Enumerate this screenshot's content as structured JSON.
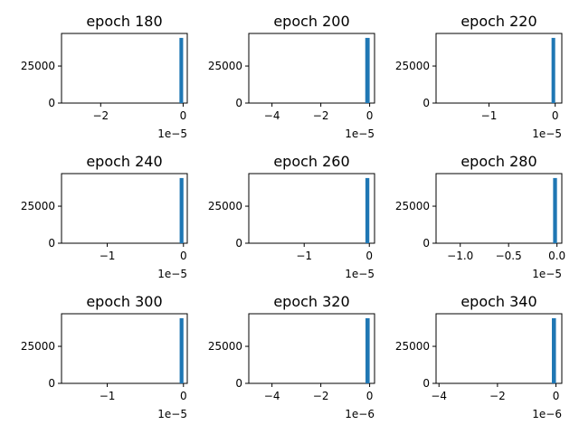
{
  "figure": {
    "bar_color": "#1f77b4",
    "background": "#ffffff"
  },
  "chart_data": [
    {
      "type": "bar",
      "title": "epoch 180",
      "x_ticks": [
        {
          "value": -2,
          "label": "−2"
        },
        {
          "value": 0,
          "label": "0"
        }
      ],
      "x_offset_label": "1e−5",
      "y_ticks": [
        {
          "value": 0,
          "label": "0"
        },
        {
          "value": 25000,
          "label": "25000"
        }
      ],
      "xlim": [
        -2.95,
        0.1
      ],
      "ylim": [
        0,
        47000
      ],
      "bars": [
        {
          "x0": -0.09,
          "x1": 0.0,
          "count": 44000
        }
      ]
    },
    {
      "type": "bar",
      "title": "epoch 200",
      "x_ticks": [
        {
          "value": -4,
          "label": "−4"
        },
        {
          "value": -2,
          "label": "−2"
        },
        {
          "value": 0,
          "label": "0"
        }
      ],
      "x_offset_label": "1e−5",
      "y_ticks": [
        {
          "value": 0,
          "label": "0"
        },
        {
          "value": 25000,
          "label": "25000"
        }
      ],
      "xlim": [
        -4.95,
        0.2
      ],
      "ylim": [
        0,
        47000
      ],
      "bars": [
        {
          "x0": -0.18,
          "x1": 0.0,
          "count": 44000
        }
      ]
    },
    {
      "type": "bar",
      "title": "epoch 220",
      "x_ticks": [
        {
          "value": -1,
          "label": "−1"
        },
        {
          "value": 0,
          "label": "0"
        }
      ],
      "x_offset_label": "1e−5",
      "y_ticks": [
        {
          "value": 0,
          "label": "0"
        },
        {
          "value": 25000,
          "label": "25000"
        }
      ],
      "xlim": [
        -1.8,
        0.1
      ],
      "ylim": [
        0,
        47000
      ],
      "bars": [
        {
          "x0": -0.055,
          "x1": 0.0,
          "count": 44000
        }
      ]
    },
    {
      "type": "bar",
      "title": "epoch 240",
      "x_ticks": [
        {
          "value": -1,
          "label": "−1"
        },
        {
          "value": 0,
          "label": "0"
        }
      ],
      "x_offset_label": "1e−5",
      "y_ticks": [
        {
          "value": 0,
          "label": "0"
        },
        {
          "value": 25000,
          "label": "25000"
        }
      ],
      "xlim": [
        -1.6,
        0.05
      ],
      "ylim": [
        0,
        47000
      ],
      "bars": [
        {
          "x0": -0.05,
          "x1": 0.0,
          "count": 44000
        }
      ]
    },
    {
      "type": "bar",
      "title": "epoch 260",
      "x_ticks": [
        {
          "value": -1,
          "label": "−1"
        },
        {
          "value": 0,
          "label": "0"
        }
      ],
      "x_offset_label": "1e−5",
      "y_ticks": [
        {
          "value": 0,
          "label": "0"
        },
        {
          "value": 25000,
          "label": "25000"
        }
      ],
      "xlim": [
        -1.85,
        0.08
      ],
      "ylim": [
        0,
        47000
      ],
      "bars": [
        {
          "x0": -0.06,
          "x1": 0.0,
          "count": 44000
        }
      ]
    },
    {
      "type": "bar",
      "title": "epoch 280",
      "x_ticks": [
        {
          "value": -1.0,
          "label": "−1.0"
        },
        {
          "value": -0.5,
          "label": "−0.5"
        },
        {
          "value": 0.0,
          "label": "0.0"
        }
      ],
      "x_offset_label": "1e−5",
      "y_ticks": [
        {
          "value": 0,
          "label": "0"
        },
        {
          "value": 25000,
          "label": "25000"
        }
      ],
      "xlim": [
        -1.25,
        0.05
      ],
      "ylim": [
        0,
        47000
      ],
      "bars": [
        {
          "x0": -0.04,
          "x1": 0.0,
          "count": 44000
        }
      ]
    },
    {
      "type": "bar",
      "title": "epoch 300",
      "x_ticks": [
        {
          "value": -1,
          "label": "−1"
        },
        {
          "value": 0,
          "label": "0"
        }
      ],
      "x_offset_label": "1e−5",
      "y_ticks": [
        {
          "value": 0,
          "label": "0"
        },
        {
          "value": 25000,
          "label": "25000"
        }
      ],
      "xlim": [
        -1.6,
        0.05
      ],
      "ylim": [
        0,
        47000
      ],
      "bars": [
        {
          "x0": -0.05,
          "x1": 0.0,
          "count": 44000
        }
      ]
    },
    {
      "type": "bar",
      "title": "epoch 320",
      "x_ticks": [
        {
          "value": -4,
          "label": "−4"
        },
        {
          "value": -2,
          "label": "−2"
        },
        {
          "value": 0,
          "label": "0"
        }
      ],
      "x_offset_label": "1e−6",
      "y_ticks": [
        {
          "value": 0,
          "label": "0"
        },
        {
          "value": 25000,
          "label": "25000"
        }
      ],
      "xlim": [
        -4.95,
        0.2
      ],
      "ylim": [
        0,
        47000
      ],
      "bars": [
        {
          "x0": -0.17,
          "x1": 0.0,
          "count": 44000
        }
      ]
    },
    {
      "type": "bar",
      "title": "epoch 340",
      "x_ticks": [
        {
          "value": -4,
          "label": "−4"
        },
        {
          "value": -2,
          "label": "−2"
        },
        {
          "value": 0,
          "label": "0"
        }
      ],
      "x_offset_label": "1e−6",
      "y_ticks": [
        {
          "value": 0,
          "label": "0"
        },
        {
          "value": 25000,
          "label": "25000"
        }
      ],
      "xlim": [
        -4.1,
        0.2
      ],
      "ylim": [
        0,
        47000
      ],
      "bars": [
        {
          "x0": -0.14,
          "x1": 0.0,
          "count": 44000
        }
      ]
    }
  ]
}
